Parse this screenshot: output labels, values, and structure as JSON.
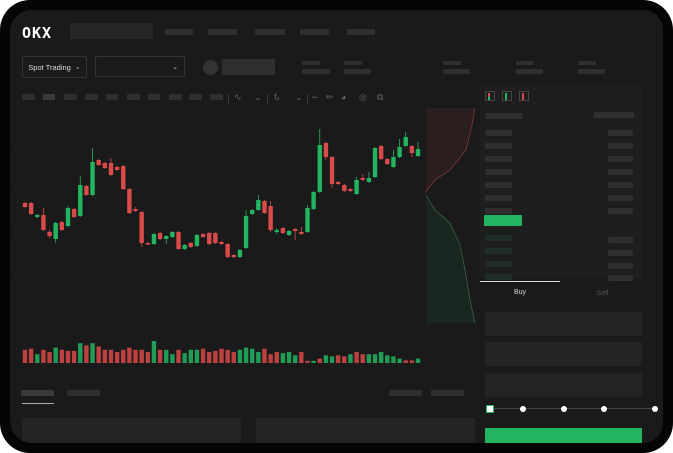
{
  "header": {
    "logo": "OKX"
  },
  "market_bar": {
    "mode_button": "Spot Trading",
    "pair_select_value": ""
  },
  "trade_form": {
    "tabs": [
      "Buy",
      "Sell"
    ],
    "active_tab": "Buy",
    "amount_slider_percent": 0,
    "slider_stops": [
      0,
      25,
      50,
      75,
      100
    ]
  },
  "colors": {
    "up": "#23b461",
    "down": "#d94a4a",
    "background": "#1a1a1a"
  },
  "orderbook_icons": [
    "orderbook-both-icon",
    "orderbook-bids-icon",
    "orderbook-asks-icon"
  ],
  "chart_toolbar_icons": [
    "line-tool-icon",
    "pencil-icon",
    "snapshot-icon",
    "indicator-icon",
    "fullscreen-icon"
  ],
  "chart_data": {
    "type": "candlestick",
    "title": "",
    "xlabel": "",
    "ylabel": "",
    "ylim": [
      40,
      175
    ],
    "ohlc": [
      [
        97,
        93,
        98,
        92
      ],
      [
        97,
        86,
        98,
        85
      ],
      [
        83,
        85,
        86,
        82
      ],
      [
        85,
        70,
        92,
        69
      ],
      [
        68,
        64,
        70,
        62
      ],
      [
        61,
        77,
        78,
        57
      ],
      [
        78,
        70,
        79,
        69
      ],
      [
        74,
        92,
        94,
        73
      ],
      [
        91,
        83,
        92,
        82
      ],
      [
        84,
        115,
        124,
        83
      ],
      [
        114,
        105,
        115,
        104
      ],
      [
        105,
        138,
        152,
        104
      ],
      [
        140,
        135,
        141,
        134
      ],
      [
        137,
        132,
        138,
        131
      ],
      [
        137,
        125,
        142,
        124
      ],
      [
        133,
        130,
        134,
        129
      ],
      [
        134,
        111,
        135,
        110
      ],
      [
        111,
        87,
        112,
        86
      ],
      [
        91,
        89,
        93,
        88
      ],
      [
        88,
        57,
        89,
        53
      ],
      [
        57,
        56,
        58,
        55
      ],
      [
        56,
        66,
        67,
        55
      ],
      [
        67,
        61,
        68,
        60
      ],
      [
        61,
        64,
        65,
        56
      ],
      [
        63,
        68,
        69,
        62
      ],
      [
        68,
        51,
        69,
        50
      ],
      [
        51,
        55,
        56,
        50
      ],
      [
        57,
        53,
        58,
        52
      ],
      [
        54,
        65,
        66,
        53
      ],
      [
        66,
        63,
        67,
        62
      ],
      [
        67,
        56,
        68,
        55
      ],
      [
        67,
        57,
        68,
        56
      ],
      [
        58,
        56,
        59,
        55
      ],
      [
        56,
        43,
        57,
        42
      ],
      [
        45,
        43,
        46,
        42
      ],
      [
        43,
        50,
        51,
        42
      ],
      [
        52,
        84,
        90,
        51
      ],
      [
        86,
        90,
        91,
        85
      ],
      [
        90,
        100,
        105,
        89
      ],
      [
        99,
        87,
        100,
        86
      ],
      [
        94,
        70,
        99,
        68
      ],
      [
        68,
        70,
        72,
        66
      ],
      [
        72,
        67,
        73,
        66
      ],
      [
        65,
        69,
        70,
        64
      ],
      [
        71,
        69,
        72,
        60
      ],
      [
        68,
        66,
        73,
        65
      ],
      [
        68,
        92,
        95,
        67
      ],
      [
        91,
        108,
        109,
        90
      ],
      [
        108,
        155,
        171,
        107
      ],
      [
        157,
        143,
        158,
        140
      ],
      [
        143,
        116,
        144,
        112
      ],
      [
        118,
        116,
        119,
        115
      ],
      [
        115,
        109,
        116,
        108
      ],
      [
        111,
        109,
        112,
        108
      ],
      [
        106,
        120,
        123,
        105
      ],
      [
        122,
        120,
        126,
        119
      ],
      [
        118,
        122,
        128,
        117
      ],
      [
        123,
        152,
        153,
        122
      ],
      [
        154,
        141,
        155,
        140
      ],
      [
        141,
        136,
        142,
        135
      ],
      [
        133,
        143,
        150,
        132
      ],
      [
        143,
        153,
        161,
        142
      ],
      [
        154,
        163,
        168,
        153
      ],
      [
        154,
        147,
        155,
        143
      ],
      [
        144,
        151,
        158,
        143
      ]
    ],
    "volume": [
      6,
      6.5,
      4,
      6,
      5,
      7,
      6,
      5.5,
      5.5,
      9,
      8,
      9,
      7.5,
      6,
      6,
      5,
      6,
      7,
      6,
      6,
      5,
      10,
      6,
      6,
      4,
      6,
      4.5,
      6,
      6,
      6.5,
      5,
      5.5,
      6.5,
      6,
      5,
      6,
      7,
      6.5,
      5,
      6.5,
      4,
      5,
      4.5,
      5,
      3.5,
      5,
      1,
      1,
      2,
      3.5,
      3,
      3.5,
      3,
      4,
      5,
      4,
      4,
      4,
      5,
      3.5,
      3,
      2,
      1.2,
      1.2,
      2
    ],
    "volume_direction": [
      "down",
      "down",
      "up",
      "down",
      "down",
      "up",
      "down",
      "down",
      "down",
      "up",
      "down",
      "up",
      "down",
      "down",
      "down",
      "down",
      "down",
      "down",
      "down",
      "down",
      "down",
      "up",
      "down",
      "up",
      "up",
      "down",
      "up",
      "up",
      "up",
      "down",
      "down",
      "down",
      "down",
      "down",
      "down",
      "up",
      "up",
      "up",
      "up",
      "down",
      "down",
      "down",
      "up",
      "up",
      "up",
      "down",
      "down",
      "up",
      "down",
      "up",
      "up",
      "down",
      "down",
      "up",
      "down",
      "down",
      "up",
      "up",
      "up",
      "up",
      "up",
      "up",
      "down",
      "down",
      "up"
    ]
  }
}
